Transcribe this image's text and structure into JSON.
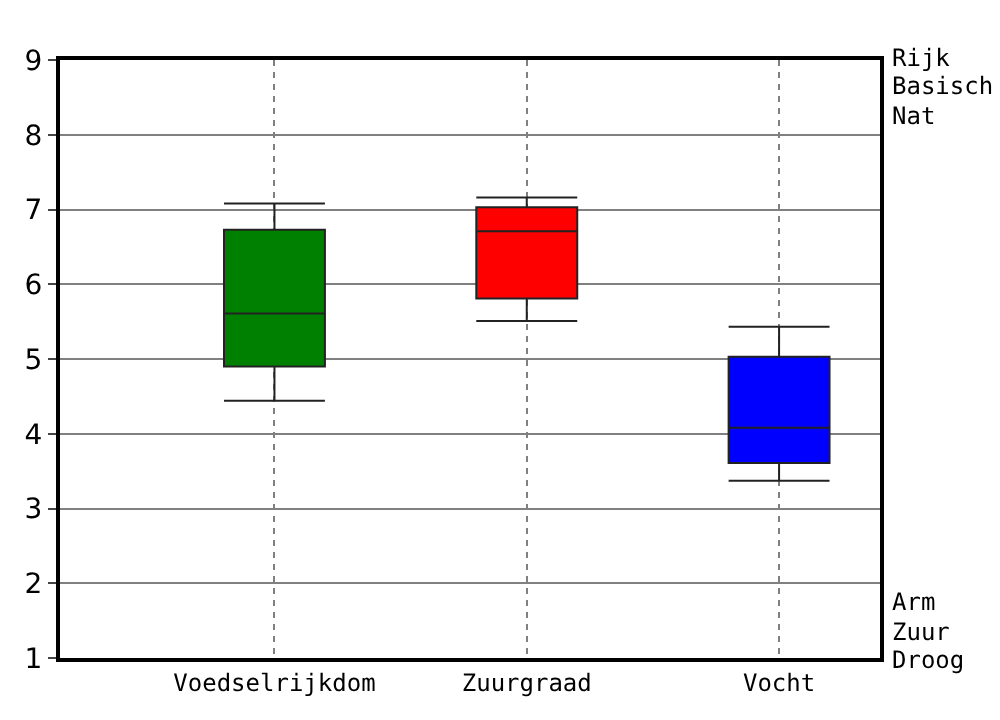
{
  "chart_data": {
    "type": "box",
    "categories": [
      "Voedselrijkdom",
      "Zuurgraad",
      "Vocht"
    ],
    "boxes": [
      {
        "low": 4.44,
        "q1": 4.9,
        "median": 5.61,
        "q3": 6.73,
        "high": 7.08
      },
      {
        "low": 5.51,
        "q1": 5.81,
        "median": 6.71,
        "q3": 7.03,
        "high": 7.16
      },
      {
        "low": 3.37,
        "q1": 3.61,
        "median": 4.08,
        "q3": 5.03,
        "high": 5.43
      }
    ],
    "colors": [
      "#008000",
      "#ff0000",
      "#0000ff"
    ],
    "ylim": [
      1,
      9
    ],
    "yticks": [
      1,
      2,
      3,
      4,
      5,
      6,
      7,
      8,
      9
    ],
    "grid": true,
    "legend": false,
    "annotations": [
      "Rijk",
      "Basisch",
      "Nat",
      "Arm",
      "Zuur",
      "Droog"
    ]
  }
}
